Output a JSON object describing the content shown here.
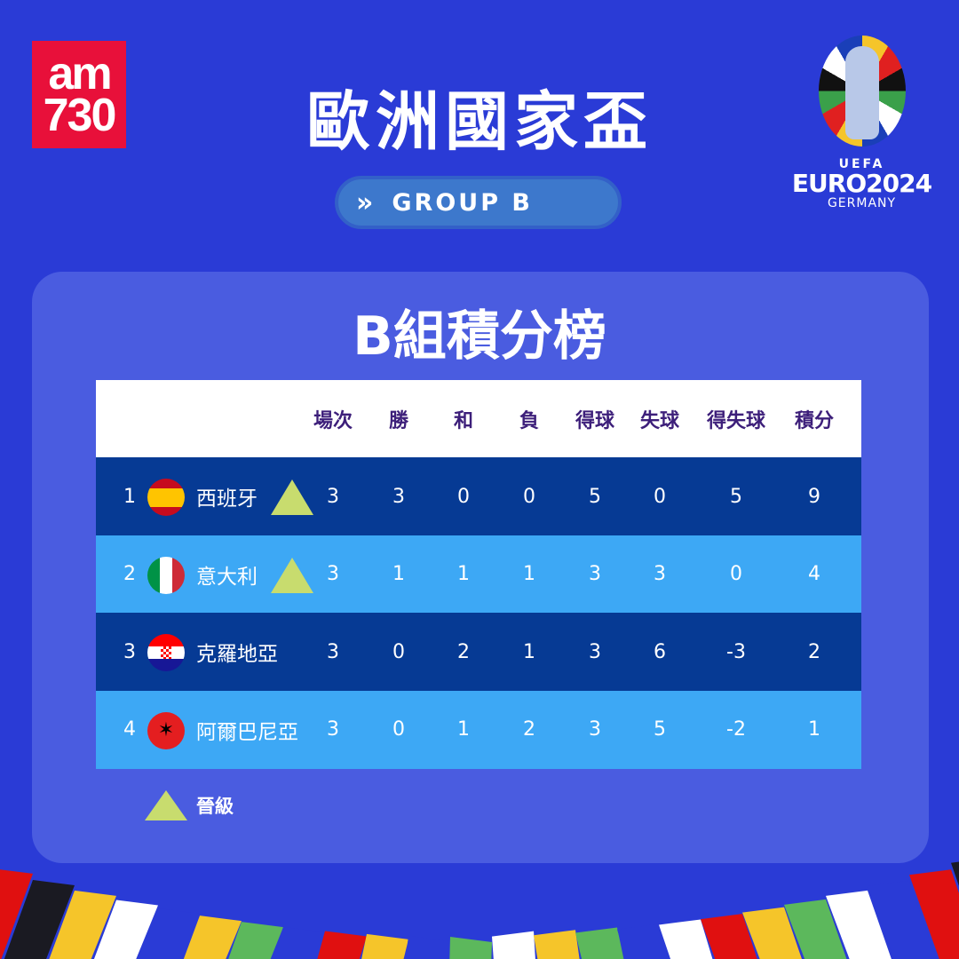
{
  "logo": {
    "line1": "am",
    "line2": "730"
  },
  "title": "歐洲國家盃",
  "group_badge": {
    "icon": "double-chevron-right-icon",
    "label": "GROUP B"
  },
  "euro_logo": {
    "uefa": "UEFA",
    "name": "EURO2024",
    "country": "GERMANY"
  },
  "subtitle": "B組積分榜",
  "table": {
    "headers": [
      "場次",
      "勝",
      "和",
      "負",
      "得球",
      "失球",
      "得失球",
      "積分"
    ],
    "rows": [
      {
        "rank": "1",
        "team": "西班牙",
        "flag": "spain",
        "qualified": true,
        "values": [
          "3",
          "3",
          "0",
          "0",
          "5",
          "0",
          "5",
          "9"
        ]
      },
      {
        "rank": "2",
        "team": "意大利",
        "flag": "italy",
        "qualified": true,
        "values": [
          "3",
          "1",
          "1",
          "1",
          "3",
          "3",
          "0",
          "4"
        ]
      },
      {
        "rank": "3",
        "team": "克羅地亞",
        "flag": "croatia",
        "qualified": false,
        "values": [
          "3",
          "0",
          "2",
          "1",
          "3",
          "6",
          "-3",
          "2"
        ]
      },
      {
        "rank": "4",
        "team": "阿爾巴尼亞",
        "flag": "albania",
        "qualified": false,
        "values": [
          "3",
          "0",
          "1",
          "2",
          "3",
          "5",
          "-2",
          "1"
        ]
      }
    ]
  },
  "legend": {
    "label": "晉級",
    "color": "#c8dc6e"
  },
  "colors": {
    "background": "#2a3bd6",
    "panel": "#4a5ce0",
    "row_dark": "#063a94",
    "row_light": "#3da8f5",
    "header_text": "#3d1f7a"
  }
}
